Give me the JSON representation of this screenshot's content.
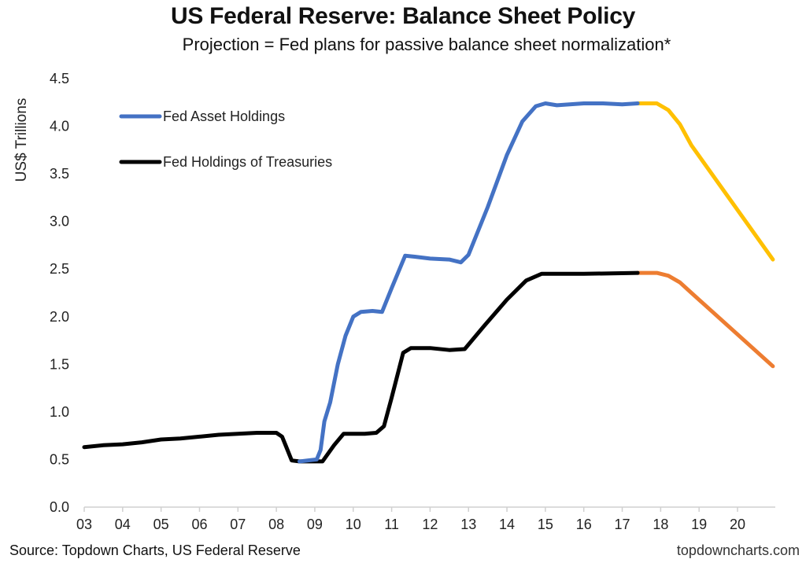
{
  "chart_data": {
    "type": "line",
    "title": "US Federal Reserve: Balance Sheet Policy",
    "subtitle": "Projection = Fed plans for passive balance sheet normalization*",
    "xlabel": "",
    "ylabel": "US$ Trillions",
    "xlim": [
      2003,
      2021
    ],
    "ylim": [
      0,
      4.5
    ],
    "yticks": [
      "0.0",
      "0.5",
      "1.0",
      "1.5",
      "2.0",
      "2.5",
      "3.0",
      "3.5",
      "4.0",
      "4.5"
    ],
    "ytick_values": [
      0,
      0.5,
      1,
      1.5,
      2,
      2.5,
      3,
      3.5,
      4,
      4.5
    ],
    "xticks": [
      "03",
      "04",
      "05",
      "06",
      "07",
      "08",
      "09",
      "10",
      "11",
      "12",
      "13",
      "14",
      "15",
      "16",
      "17",
      "18",
      "19",
      "20"
    ],
    "xtick_values": [
      2003,
      2004,
      2005,
      2006,
      2007,
      2008,
      2009,
      2010,
      2011,
      2012,
      2013,
      2014,
      2015,
      2016,
      2017,
      2018,
      2019,
      2020
    ],
    "grid": false,
    "legend_position": "top-left",
    "legend": [
      {
        "label": "Fed Asset Holdings",
        "color": "#4472C4"
      },
      {
        "label": "Fed Holdings of Treasuries",
        "color": "#000000"
      }
    ],
    "series": [
      {
        "name": "Fed Holdings of Treasuries",
        "color": "#000000",
        "points": [
          [
            2003.0,
            0.63
          ],
          [
            2003.5,
            0.65
          ],
          [
            2004.0,
            0.66
          ],
          [
            2004.5,
            0.68
          ],
          [
            2005.0,
            0.71
          ],
          [
            2005.5,
            0.72
          ],
          [
            2006.0,
            0.74
          ],
          [
            2006.5,
            0.76
          ],
          [
            2007.0,
            0.77
          ],
          [
            2007.5,
            0.78
          ],
          [
            2008.0,
            0.78
          ],
          [
            2008.15,
            0.74
          ],
          [
            2008.25,
            0.64
          ],
          [
            2008.4,
            0.49
          ],
          [
            2008.6,
            0.48
          ],
          [
            2009.2,
            0.48
          ],
          [
            2009.5,
            0.65
          ],
          [
            2009.75,
            0.77
          ],
          [
            2010.3,
            0.77
          ],
          [
            2010.6,
            0.78
          ],
          [
            2010.8,
            0.85
          ],
          [
            2011.0,
            1.15
          ],
          [
            2011.3,
            1.62
          ],
          [
            2011.5,
            1.67
          ],
          [
            2012.0,
            1.67
          ],
          [
            2012.5,
            1.65
          ],
          [
            2012.9,
            1.66
          ],
          [
            2013.4,
            1.9
          ],
          [
            2014.0,
            2.18
          ],
          [
            2014.5,
            2.38
          ],
          [
            2014.9,
            2.45
          ],
          [
            2016.0,
            2.45
          ],
          [
            2017.4,
            2.46
          ]
        ]
      },
      {
        "name": "Fed Asset Holdings",
        "color": "#4472C4",
        "points": [
          [
            2008.6,
            0.48
          ],
          [
            2009.05,
            0.5
          ],
          [
            2009.15,
            0.6
          ],
          [
            2009.25,
            0.9
          ],
          [
            2009.4,
            1.1
          ],
          [
            2009.6,
            1.5
          ],
          [
            2009.8,
            1.8
          ],
          [
            2010.0,
            2.0
          ],
          [
            2010.2,
            2.05
          ],
          [
            2010.5,
            2.06
          ],
          [
            2010.75,
            2.05
          ],
          [
            2011.0,
            2.3
          ],
          [
            2011.35,
            2.64
          ],
          [
            2011.6,
            2.63
          ],
          [
            2012.0,
            2.61
          ],
          [
            2012.5,
            2.6
          ],
          [
            2012.8,
            2.57
          ],
          [
            2013.0,
            2.65
          ],
          [
            2013.5,
            3.15
          ],
          [
            2014.0,
            3.7
          ],
          [
            2014.4,
            4.05
          ],
          [
            2014.75,
            4.21
          ],
          [
            2015.0,
            4.24
          ],
          [
            2015.3,
            4.22
          ],
          [
            2016.0,
            4.24
          ],
          [
            2016.5,
            4.24
          ],
          [
            2017.0,
            4.23
          ],
          [
            2017.4,
            4.24
          ]
        ]
      },
      {
        "name": "Fed Asset Holdings (Projection)",
        "color": "#FFC000",
        "points": [
          [
            2017.4,
            4.24
          ],
          [
            2017.9,
            4.24
          ],
          [
            2018.2,
            4.17
          ],
          [
            2018.5,
            4.02
          ],
          [
            2018.8,
            3.8
          ],
          [
            2020.92,
            2.6
          ]
        ]
      },
      {
        "name": "Fed Holdings of Treasuries (Projection)",
        "color": "#ED7D31",
        "points": [
          [
            2017.4,
            2.46
          ],
          [
            2017.9,
            2.46
          ],
          [
            2018.2,
            2.43
          ],
          [
            2018.5,
            2.36
          ],
          [
            2018.8,
            2.25
          ],
          [
            2020.92,
            1.48
          ]
        ]
      }
    ]
  },
  "footer": {
    "source": "Source: Topdown Charts, US Federal Reserve",
    "website": "topdowncharts.com"
  }
}
